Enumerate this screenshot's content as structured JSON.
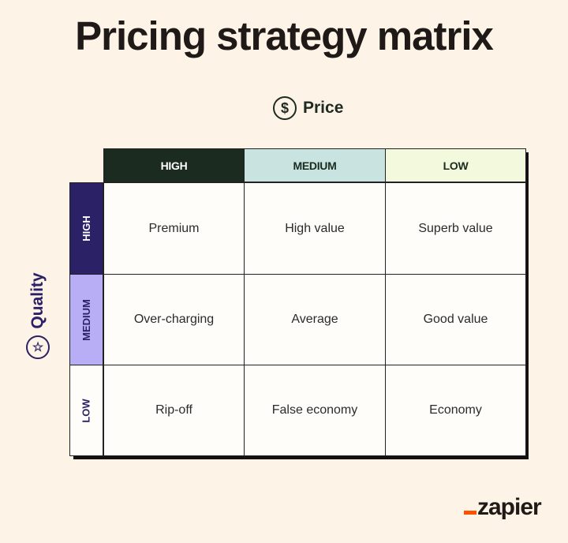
{
  "title": "Pricing strategy matrix",
  "price_axis": {
    "label": "Price",
    "icon": "dollar-circle-icon",
    "symbol": "$"
  },
  "quality_axis": {
    "label": "Quality",
    "icon": "star-circle-icon",
    "symbol": "☆"
  },
  "columns": [
    {
      "label": "HIGH",
      "bg": "#1c2b1f",
      "color": "#ffffff"
    },
    {
      "label": "MEDIUM",
      "bg": "#c9e3e1",
      "color": "#1c2b1f"
    },
    {
      "label": "LOW",
      "bg": "#f3f9dc",
      "color": "#1c2b1f"
    }
  ],
  "rows": [
    {
      "label": "HIGH",
      "bg": "#2a2166",
      "color": "#ffffff",
      "cells": [
        "Premium",
        "High value",
        "Superb value"
      ]
    },
    {
      "label": "MEDIUM",
      "bg": "#b7aef5",
      "color": "#2a2166",
      "cells": [
        "Over-charging",
        "Average",
        "Good value"
      ]
    },
    {
      "label": "LOW",
      "bg": "#fffdf9",
      "color": "#2a2166",
      "cells": [
        "Rip-off",
        "False economy",
        "Economy"
      ]
    }
  ],
  "logo": {
    "text": "zapier",
    "accent": "#ff4f00"
  }
}
